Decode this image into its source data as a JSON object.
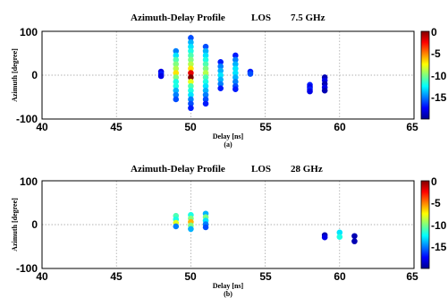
{
  "chart_data": [
    {
      "type": "scatter",
      "title_parts": [
        "Azimuth-Delay Profile",
        "LOS",
        "7.5 GHz"
      ],
      "xlabel": "Delay [ns]",
      "ylabel": "Azimuth [degree]",
      "caption": "(a)",
      "xlim": [
        40,
        65
      ],
      "ylim": [
        -100,
        100
      ],
      "xticks": [
        "40",
        "45",
        "50",
        "55",
        "60",
        "65"
      ],
      "yticks": [
        "100",
        "0",
        "-100"
      ],
      "grid": true,
      "colorbar": {
        "ticks": [
          "0",
          "-5",
          "-10",
          "-15"
        ],
        "range": [
          -20,
          0
        ],
        "colormap": "jet"
      },
      "points": [
        {
          "x": 48,
          "y": 8,
          "c": -18
        },
        {
          "x": 48,
          "y": 3,
          "c": -17
        },
        {
          "x": 48,
          "y": -2,
          "c": -18
        },
        {
          "x": 49,
          "y": 55,
          "c": -15
        },
        {
          "x": 49,
          "y": 45,
          "c": -13
        },
        {
          "x": 49,
          "y": 35,
          "c": -11
        },
        {
          "x": 49,
          "y": 25,
          "c": -10
        },
        {
          "x": 49,
          "y": 15,
          "c": -9
        },
        {
          "x": 49,
          "y": 5,
          "c": -7
        },
        {
          "x": 49,
          "y": -5,
          "c": -10
        },
        {
          "x": 49,
          "y": -15,
          "c": -12
        },
        {
          "x": 49,
          "y": -25,
          "c": -12
        },
        {
          "x": 49,
          "y": -35,
          "c": -14
        },
        {
          "x": 49,
          "y": -45,
          "c": -15
        },
        {
          "x": 49,
          "y": -55,
          "c": -16
        },
        {
          "x": 50,
          "y": 85,
          "c": -16
        },
        {
          "x": 50,
          "y": 75,
          "c": -14
        },
        {
          "x": 50,
          "y": 65,
          "c": -13
        },
        {
          "x": 50,
          "y": 55,
          "c": -12
        },
        {
          "x": 50,
          "y": 45,
          "c": -11
        },
        {
          "x": 50,
          "y": 35,
          "c": -10
        },
        {
          "x": 50,
          "y": 25,
          "c": -9
        },
        {
          "x": 50,
          "y": 15,
          "c": -7
        },
        {
          "x": 50,
          "y": 5,
          "c": -2
        },
        {
          "x": 50,
          "y": -5,
          "c": 0
        },
        {
          "x": 50,
          "y": -15,
          "c": -8
        },
        {
          "x": 50,
          "y": -25,
          "c": -11
        },
        {
          "x": 50,
          "y": -35,
          "c": -12
        },
        {
          "x": 50,
          "y": -45,
          "c": -13
        },
        {
          "x": 50,
          "y": -55,
          "c": -15
        },
        {
          "x": 50,
          "y": -65,
          "c": -16
        },
        {
          "x": 50,
          "y": -75,
          "c": -17
        },
        {
          "x": 51,
          "y": 65,
          "c": -16
        },
        {
          "x": 51,
          "y": 55,
          "c": -14
        },
        {
          "x": 51,
          "y": 45,
          "c": -13
        },
        {
          "x": 51,
          "y": 35,
          "c": -12
        },
        {
          "x": 51,
          "y": 25,
          "c": -11
        },
        {
          "x": 51,
          "y": 15,
          "c": -10
        },
        {
          "x": 51,
          "y": 5,
          "c": -9
        },
        {
          "x": 51,
          "y": -5,
          "c": -11
        },
        {
          "x": 51,
          "y": -15,
          "c": -12
        },
        {
          "x": 51,
          "y": -25,
          "c": -13
        },
        {
          "x": 51,
          "y": -35,
          "c": -14
        },
        {
          "x": 51,
          "y": -45,
          "c": -15
        },
        {
          "x": 51,
          "y": -55,
          "c": -16
        },
        {
          "x": 51,
          "y": -65,
          "c": -17
        },
        {
          "x": 52,
          "y": 30,
          "c": -17
        },
        {
          "x": 52,
          "y": 20,
          "c": -15
        },
        {
          "x": 52,
          "y": 10,
          "c": -14
        },
        {
          "x": 52,
          "y": 0,
          "c": -13
        },
        {
          "x": 52,
          "y": -10,
          "c": -14
        },
        {
          "x": 52,
          "y": -20,
          "c": -15
        },
        {
          "x": 52,
          "y": -30,
          "c": -17
        },
        {
          "x": 53,
          "y": 45,
          "c": -17
        },
        {
          "x": 53,
          "y": 35,
          "c": -15
        },
        {
          "x": 53,
          "y": 25,
          "c": -14
        },
        {
          "x": 53,
          "y": 15,
          "c": -13
        },
        {
          "x": 53,
          "y": 5,
          "c": -13
        },
        {
          "x": 53,
          "y": -5,
          "c": -14
        },
        {
          "x": 53,
          "y": -15,
          "c": -15
        },
        {
          "x": 53,
          "y": -25,
          "c": -16
        },
        {
          "x": 53,
          "y": -32,
          "c": -17
        },
        {
          "x": 54,
          "y": 8,
          "c": -17
        },
        {
          "x": 54,
          "y": 3,
          "c": -16
        },
        {
          "x": 58,
          "y": -22,
          "c": -17
        },
        {
          "x": 58,
          "y": -27,
          "c": -18
        },
        {
          "x": 58,
          "y": -32,
          "c": -17
        },
        {
          "x": 58,
          "y": -37,
          "c": -18
        },
        {
          "x": 59,
          "y": -5,
          "c": -19
        },
        {
          "x": 59,
          "y": -12,
          "c": -18
        },
        {
          "x": 59,
          "y": -20,
          "c": -19
        },
        {
          "x": 59,
          "y": -28,
          "c": -18
        },
        {
          "x": 59,
          "y": -35,
          "c": -19
        }
      ]
    },
    {
      "type": "scatter",
      "title_parts": [
        "Azimuth-Delay Profile",
        "LOS",
        "28 GHz"
      ],
      "xlabel": "Delay [ns]",
      "ylabel": "Azimuth [degree]",
      "caption": "(b)",
      "xlim": [
        40,
        65
      ],
      "ylim": [
        -100,
        100
      ],
      "xticks": [
        "40",
        "45",
        "50",
        "55",
        "60",
        "65"
      ],
      "yticks": [
        "100",
        "0",
        "-100"
      ],
      "grid": true,
      "colorbar": {
        "ticks": [
          "0",
          "-5",
          "-10",
          "-15"
        ],
        "range": [
          -20,
          0
        ],
        "colormap": "jet"
      },
      "points": [
        {
          "x": 49,
          "y": 20,
          "c": -11
        },
        {
          "x": 49,
          "y": 12,
          "c": -12
        },
        {
          "x": 49,
          "y": 4,
          "c": -8
        },
        {
          "x": 49,
          "y": -4,
          "c": -15
        },
        {
          "x": 50,
          "y": 22,
          "c": -12
        },
        {
          "x": 50,
          "y": 14,
          "c": -10
        },
        {
          "x": 50,
          "y": 6,
          "c": -6
        },
        {
          "x": 50,
          "y": -2,
          "c": -10
        },
        {
          "x": 50,
          "y": -10,
          "c": -14
        },
        {
          "x": 51,
          "y": 25,
          "c": -14
        },
        {
          "x": 51,
          "y": 17,
          "c": -10
        },
        {
          "x": 51,
          "y": 9,
          "c": -13
        },
        {
          "x": 51,
          "y": 1,
          "c": -15
        },
        {
          "x": 51,
          "y": -6,
          "c": -16
        },
        {
          "x": 59,
          "y": -24,
          "c": -19
        },
        {
          "x": 59,
          "y": -29,
          "c": -18
        },
        {
          "x": 60,
          "y": -18,
          "c": -13
        },
        {
          "x": 60,
          "y": -28,
          "c": -12
        },
        {
          "x": 61,
          "y": -26,
          "c": -19
        },
        {
          "x": 61,
          "y": -38,
          "c": -19
        }
      ]
    }
  ]
}
